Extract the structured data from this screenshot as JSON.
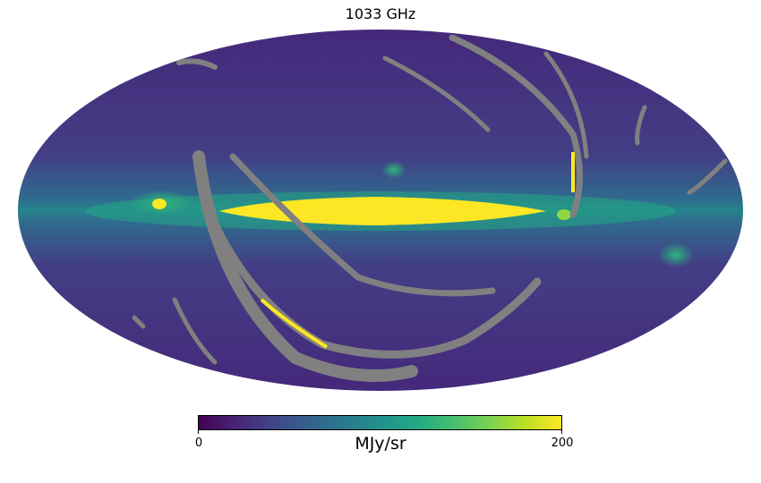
{
  "chart_data": {
    "type": "heatmap",
    "projection": "mollweide",
    "title": "1033 GHz",
    "colormap": "viridis",
    "colorbar": {
      "min": 0,
      "max": 200,
      "tick_labels": [
        "0",
        "200"
      ],
      "label": "MJy/sr"
    },
    "masked_color": "#808080",
    "colors": {
      "background": "#46337e",
      "plane": "#21918c",
      "core": "#fde725"
    }
  }
}
